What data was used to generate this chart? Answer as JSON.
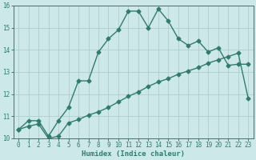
{
  "xlabel": "Humidex (Indice chaleur)",
  "xlim": [
    -0.5,
    23.5
  ],
  "ylim": [
    10,
    16
  ],
  "yticks": [
    10,
    11,
    12,
    13,
    14,
    15,
    16
  ],
  "xticks": [
    0,
    1,
    2,
    3,
    4,
    5,
    6,
    7,
    8,
    9,
    10,
    11,
    12,
    13,
    14,
    15,
    16,
    17,
    18,
    19,
    20,
    21,
    22,
    23
  ],
  "background_color": "#cde8e8",
  "grid_color": "#b0cccc",
  "line_color": "#2e7d6e",
  "line1_x": [
    0,
    1,
    2,
    3,
    4,
    5,
    6,
    7,
    8,
    9,
    10,
    11,
    12,
    13,
    14,
    15,
    16,
    17,
    18,
    19,
    20,
    21,
    22,
    23
  ],
  "line1_y": [
    10.4,
    10.8,
    10.8,
    10.1,
    10.8,
    11.4,
    12.6,
    12.6,
    13.9,
    14.5,
    14.9,
    15.75,
    15.75,
    15.0,
    15.85,
    15.3,
    14.5,
    14.2,
    14.4,
    13.9,
    14.1,
    13.3,
    13.35,
    13.35
  ],
  "line2_x": [
    0,
    1,
    2,
    3,
    4,
    5,
    6,
    7,
    8,
    9,
    10,
    11,
    12,
    13,
    14,
    15,
    16,
    17,
    18,
    19,
    20,
    21,
    22,
    23
  ],
  "line2_y": [
    10.4,
    10.55,
    10.65,
    10.0,
    10.1,
    10.7,
    10.85,
    11.05,
    11.2,
    11.4,
    11.65,
    11.9,
    12.1,
    12.35,
    12.55,
    12.7,
    12.9,
    13.05,
    13.2,
    13.4,
    13.55,
    13.7,
    13.85,
    11.8
  ],
  "marker_size": 2.5,
  "line_width": 1.0,
  "font_family": "monospace",
  "tick_fontsize": 5.5,
  "xlabel_fontsize": 6.5
}
